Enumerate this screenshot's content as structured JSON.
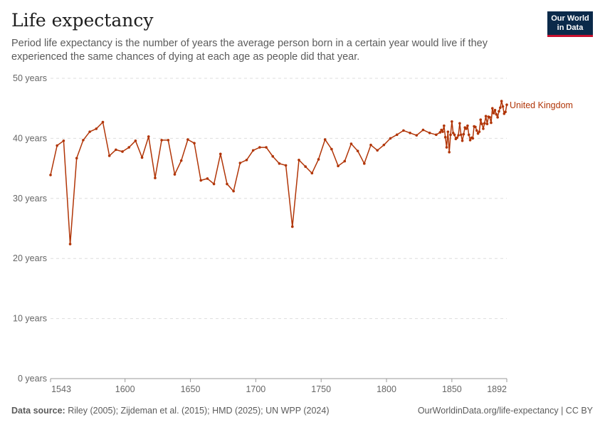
{
  "header": {
    "title": "Life expectancy",
    "subtitle": "Period life expectancy is the number of years the average person born in a certain year would live if they experienced the same chances of dying at each age as people did that year."
  },
  "logo": {
    "line1": "Our World",
    "line2": "in Data"
  },
  "footer": {
    "source_label": "Data source:",
    "source_text": "Riley (2005); Zijdeman et al. (2015); HMD (2025); UN WPP (2024)",
    "url": "OurWorldinData.org/life-expectancy | CC BY"
  },
  "chart_data": {
    "type": "line",
    "title": "Life expectancy",
    "xlim": [
      1543,
      1892
    ],
    "ylim": [
      0,
      50
    ],
    "x_ticks": [
      1543,
      1600,
      1650,
      1700,
      1750,
      1800,
      1850,
      1892
    ],
    "y_ticks": [
      0,
      10,
      20,
      30,
      40,
      50
    ],
    "y_tick_labels": [
      "0 years",
      "10 years",
      "20 years",
      "30 years",
      "40 years",
      "50 years"
    ],
    "grid": true,
    "series": [
      {
        "name": "United Kingdom",
        "color": "#b13507",
        "x": [
          1543,
          1548,
          1553,
          1558,
          1563,
          1568,
          1573,
          1578,
          1583,
          1588,
          1593,
          1598,
          1603,
          1608,
          1613,
          1618,
          1623,
          1628,
          1633,
          1638,
          1643,
          1648,
          1653,
          1658,
          1663,
          1668,
          1673,
          1678,
          1683,
          1688,
          1693,
          1698,
          1703,
          1708,
          1713,
          1718,
          1723,
          1728,
          1733,
          1738,
          1743,
          1748,
          1753,
          1758,
          1763,
          1768,
          1773,
          1778,
          1783,
          1788,
          1793,
          1798,
          1803,
          1808,
          1813,
          1818,
          1823,
          1828,
          1833,
          1838,
          1841,
          1842,
          1843,
          1844,
          1845,
          1846,
          1847,
          1848,
          1849,
          1850,
          1851,
          1852,
          1853,
          1854,
          1855,
          1856,
          1857,
          1858,
          1859,
          1860,
          1861,
          1862,
          1863,
          1864,
          1865,
          1866,
          1867,
          1868,
          1869,
          1870,
          1871,
          1872,
          1873,
          1874,
          1875,
          1876,
          1877,
          1878,
          1879,
          1880,
          1881,
          1882,
          1883,
          1884,
          1885,
          1886,
          1887,
          1888,
          1889,
          1890,
          1891,
          1892
        ],
        "y": [
          33.9,
          38.8,
          39.6,
          22.4,
          36.7,
          39.7,
          41.1,
          41.6,
          42.7,
          37.1,
          38.1,
          37.8,
          38.5,
          39.6,
          36.8,
          40.3,
          33.4,
          39.7,
          39.7,
          34.0,
          36.3,
          39.8,
          39.2,
          33.0,
          33.3,
          32.4,
          37.4,
          32.4,
          31.2,
          35.9,
          36.4,
          38.0,
          38.5,
          38.5,
          37.0,
          35.8,
          35.5,
          25.3,
          36.4,
          35.3,
          34.2,
          36.5,
          39.8,
          38.2,
          35.4,
          36.2,
          39.1,
          37.9,
          35.8,
          38.9,
          38.0,
          38.9,
          40.0,
          40.6,
          41.3,
          40.9,
          40.5,
          41.4,
          40.9,
          40.6,
          41.0,
          41.4,
          41.1,
          42.1,
          40.2,
          38.5,
          41.1,
          37.7,
          40.6,
          42.8,
          40.9,
          40.6,
          39.9,
          40.1,
          40.5,
          42.5,
          40.6,
          39.6,
          40.7,
          41.8,
          41.6,
          42.1,
          40.6,
          39.7,
          40.1,
          40.0,
          42.0,
          41.9,
          41.3,
          40.8,
          41.1,
          43.1,
          42.4,
          41.6,
          42.5,
          43.7,
          42.4,
          43.6,
          43.5,
          42.6,
          45.0,
          44.2,
          44.7,
          44.0,
          43.5,
          44.5,
          45.1,
          46.2,
          45.3,
          44.1,
          44.4,
          45.6
        ]
      }
    ]
  }
}
